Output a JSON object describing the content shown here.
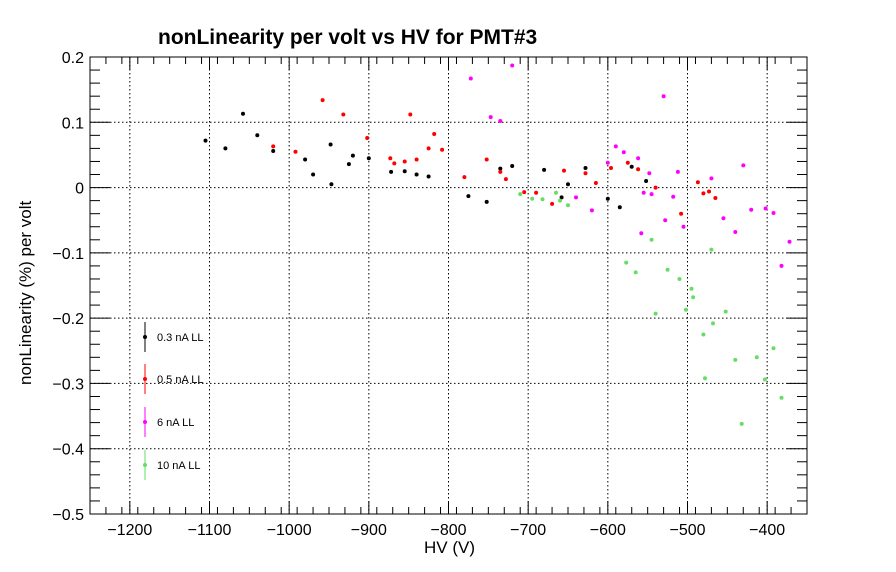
{
  "chart_data": {
    "type": "scatter",
    "title": "nonLinearity per volt vs HV for PMT#3",
    "xlabel": "HV (V)",
    "ylabel": "nonLinearity (%) per volt",
    "xlim": [
      -1250,
      -350
    ],
    "ylim": [
      -0.5,
      0.2
    ],
    "x_ticks": [
      -1200,
      -1100,
      -1000,
      -900,
      -800,
      -700,
      -600,
      -500,
      -400
    ],
    "x_tick_labels": [
      "−1200",
      "−1100",
      "−1000",
      "−900",
      "−800",
      "−700",
      "−600",
      "−500",
      "−400"
    ],
    "y_ticks": [
      -0.5,
      -0.4,
      -0.3,
      -0.2,
      -0.1,
      0,
      0.1,
      0.2
    ],
    "y_tick_labels": [
      "−0.5",
      "−0.4",
      "−0.3",
      "−0.2",
      "−0.1",
      "0",
      "0.1",
      "0.2"
    ],
    "grid": true,
    "legend_position": "bottom-left",
    "series": [
      {
        "name": "0.3 nA LL",
        "color": "#000000",
        "points": [
          [
            -1105,
            0.072
          ],
          [
            -1080,
            0.06
          ],
          [
            -1058,
            0.113
          ],
          [
            -1040,
            0.08
          ],
          [
            -1020,
            0.056
          ],
          [
            -980,
            0.043
          ],
          [
            -970,
            0.02
          ],
          [
            -948,
            0.066
          ],
          [
            -947,
            0.005
          ],
          [
            -925,
            0.036
          ],
          [
            -920,
            0.049
          ],
          [
            -900,
            0.045
          ],
          [
            -872,
            0.024
          ],
          [
            -855,
            0.025
          ],
          [
            -840,
            0.02
          ],
          [
            -825,
            0.017
          ],
          [
            -775,
            -0.013
          ],
          [
            -752,
            -0.022
          ],
          [
            -735,
            0.029
          ],
          [
            -720,
            0.033
          ],
          [
            -680,
            0.027
          ],
          [
            -658,
            -0.015
          ],
          [
            -650,
            0.005
          ],
          [
            -628,
            0.03
          ],
          [
            -600,
            -0.017
          ],
          [
            -585,
            -0.03
          ],
          [
            -570,
            0.032
          ],
          [
            -552,
            0.01
          ]
        ]
      },
      {
        "name": "0.5 nA LL",
        "color": "#ff0000",
        "points": [
          [
            -1020,
            0.063
          ],
          [
            -992,
            0.055
          ],
          [
            -958,
            0.134
          ],
          [
            -932,
            0.112
          ],
          [
            -902,
            0.076
          ],
          [
            -873,
            0.045
          ],
          [
            -868,
            0.037
          ],
          [
            -855,
            0.04
          ],
          [
            -848,
            0.112
          ],
          [
            -840,
            0.043
          ],
          [
            -825,
            0.06
          ],
          [
            -818,
            0.082
          ],
          [
            -808,
            0.058
          ],
          [
            -780,
            0.016
          ],
          [
            -752,
            0.043
          ],
          [
            -735,
            0.024
          ],
          [
            -728,
            0.013
          ],
          [
            -705,
            -0.007
          ],
          [
            -690,
            -0.008
          ],
          [
            -670,
            -0.025
          ],
          [
            -655,
            0.026
          ],
          [
            -628,
            0.022
          ],
          [
            -615,
            0.007
          ],
          [
            -596,
            0.03
          ],
          [
            -575,
            0.038
          ],
          [
            -562,
            0.028
          ],
          [
            -540,
            0.0
          ],
          [
            -487,
            0.008
          ],
          [
            -480,
            -0.009
          ],
          [
            -473,
            -0.006
          ],
          [
            -465,
            -0.016
          ],
          [
            -508,
            -0.04
          ]
        ]
      },
      {
        "name": "6 nA LL",
        "color": "#ff00ff",
        "points": [
          [
            -772,
            0.167
          ],
          [
            -747,
            0.108
          ],
          [
            -735,
            0.102
          ],
          [
            -720,
            0.187
          ],
          [
            -600,
            0.038
          ],
          [
            -590,
            0.063
          ],
          [
            -580,
            0.054
          ],
          [
            -562,
            0.045
          ],
          [
            -558,
            -0.07
          ],
          [
            -555,
            -0.008
          ],
          [
            -548,
            0.022
          ],
          [
            -545,
            -0.01
          ],
          [
            -530,
            0.14
          ],
          [
            -528,
            -0.05
          ],
          [
            -518,
            -0.014
          ],
          [
            -512,
            0.024
          ],
          [
            -505,
            -0.06
          ],
          [
            -470,
            0.014
          ],
          [
            -455,
            -0.047
          ],
          [
            -440,
            -0.068
          ],
          [
            -430,
            0.034
          ],
          [
            -420,
            -0.034
          ],
          [
            -402,
            -0.032
          ],
          [
            -392,
            -0.039
          ],
          [
            -382,
            -0.12
          ],
          [
            -372,
            -0.083
          ],
          [
            -640,
            -0.015
          ],
          [
            -620,
            -0.035
          ]
        ]
      },
      {
        "name": "10 nA LL",
        "color": "#66dd66",
        "points": [
          [
            -710,
            -0.01
          ],
          [
            -695,
            -0.017
          ],
          [
            -682,
            -0.018
          ],
          [
            -665,
            -0.008
          ],
          [
            -660,
            -0.02
          ],
          [
            -650,
            -0.027
          ],
          [
            -577,
            -0.115
          ],
          [
            -565,
            -0.13
          ],
          [
            -545,
            -0.08
          ],
          [
            -540,
            -0.193
          ],
          [
            -525,
            -0.126
          ],
          [
            -510,
            -0.14
          ],
          [
            -502,
            -0.187
          ],
          [
            -495,
            -0.155
          ],
          [
            -493,
            -0.168
          ],
          [
            -480,
            -0.225
          ],
          [
            -478,
            -0.292
          ],
          [
            -470,
            -0.095
          ],
          [
            -468,
            -0.208
          ],
          [
            -452,
            -0.19
          ],
          [
            -440,
            -0.264
          ],
          [
            -432,
            -0.362
          ],
          [
            -413,
            -0.26
          ],
          [
            -403,
            -0.294
          ],
          [
            -392,
            -0.246
          ],
          [
            -382,
            -0.322
          ]
        ]
      }
    ]
  }
}
